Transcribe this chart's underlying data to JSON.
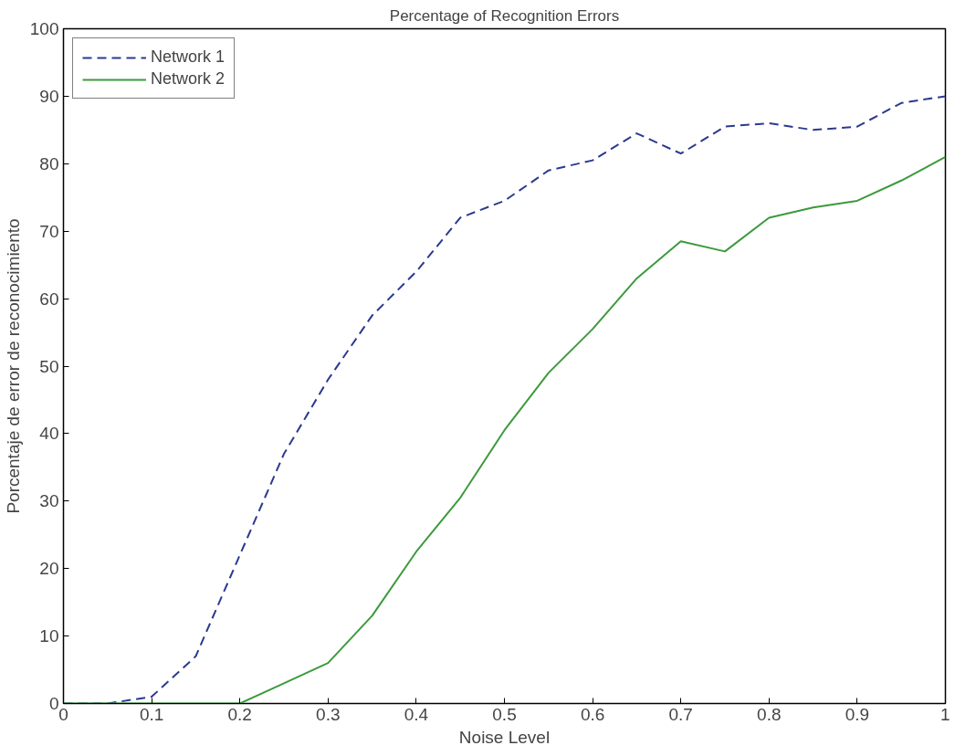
{
  "chart_data": {
    "type": "line",
    "title": "Percentage of Recognition Errors",
    "xlabel": "Noise Level",
    "ylabel": "Porcentaje de error de reconocimiento",
    "x": [
      0,
      0.05,
      0.1,
      0.15,
      0.2,
      0.25,
      0.3,
      0.35,
      0.4,
      0.45,
      0.5,
      0.55,
      0.6,
      0.65,
      0.7,
      0.75,
      0.8,
      0.85,
      0.9,
      0.95,
      1.0
    ],
    "series": [
      {
        "name": "Network 1",
        "color": "#2b3a8f",
        "line_style": "dashed",
        "values": [
          0,
          0,
          1,
          7,
          22,
          37,
          48,
          57.5,
          64,
          72,
          74.5,
          79,
          80.5,
          84.5,
          81.5,
          85.5,
          86,
          85,
          85.5,
          89,
          90
        ]
      },
      {
        "name": "Network 2",
        "color": "#3c9a3c",
        "line_style": "solid",
        "values": [
          0,
          0,
          0,
          0,
          0,
          3,
          6,
          13,
          22.5,
          30.5,
          40.5,
          49,
          55.5,
          63,
          68.5,
          67,
          72,
          73.5,
          74.5,
          77.5,
          81
        ]
      }
    ],
    "xlim": [
      0,
      1
    ],
    "ylim": [
      0,
      100
    ],
    "xticks": [
      0,
      0.1,
      0.2,
      0.3,
      0.4,
      0.5,
      0.6,
      0.7,
      0.8,
      0.9,
      1
    ],
    "yticks": [
      0,
      10,
      20,
      30,
      40,
      50,
      60,
      70,
      80,
      90,
      100
    ],
    "grid": false,
    "legend": "top left"
  }
}
